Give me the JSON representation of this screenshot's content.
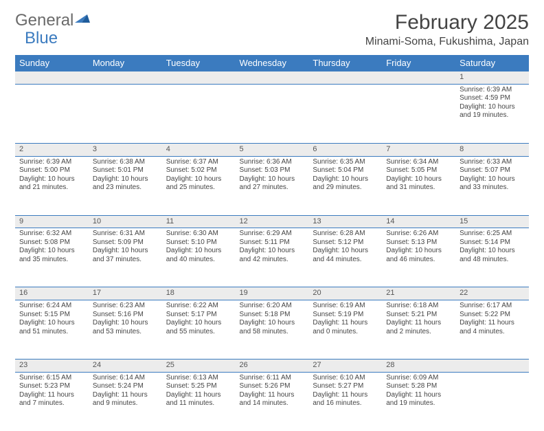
{
  "logo": {
    "part1": "General",
    "part2": "Blue"
  },
  "title": "February 2025",
  "location": "Minami-Soma, Fukushima, Japan",
  "colors": {
    "header_bg": "#3b7bbf",
    "header_text": "#ffffff",
    "daynum_bg": "#ececec",
    "border": "#3b7bbf",
    "text": "#444444",
    "logo_gray": "#6a6a6a",
    "logo_blue": "#3b7bbf"
  },
  "day_headers": [
    "Sunday",
    "Monday",
    "Tuesday",
    "Wednesday",
    "Thursday",
    "Friday",
    "Saturday"
  ],
  "weeks": [
    [
      null,
      null,
      null,
      null,
      null,
      null,
      {
        "n": "1",
        "sunrise": "Sunrise: 6:39 AM",
        "sunset": "Sunset: 4:59 PM",
        "daylight": "Daylight: 10 hours and 19 minutes."
      }
    ],
    [
      {
        "n": "2",
        "sunrise": "Sunrise: 6:39 AM",
        "sunset": "Sunset: 5:00 PM",
        "daylight": "Daylight: 10 hours and 21 minutes."
      },
      {
        "n": "3",
        "sunrise": "Sunrise: 6:38 AM",
        "sunset": "Sunset: 5:01 PM",
        "daylight": "Daylight: 10 hours and 23 minutes."
      },
      {
        "n": "4",
        "sunrise": "Sunrise: 6:37 AM",
        "sunset": "Sunset: 5:02 PM",
        "daylight": "Daylight: 10 hours and 25 minutes."
      },
      {
        "n": "5",
        "sunrise": "Sunrise: 6:36 AM",
        "sunset": "Sunset: 5:03 PM",
        "daylight": "Daylight: 10 hours and 27 minutes."
      },
      {
        "n": "6",
        "sunrise": "Sunrise: 6:35 AM",
        "sunset": "Sunset: 5:04 PM",
        "daylight": "Daylight: 10 hours and 29 minutes."
      },
      {
        "n": "7",
        "sunrise": "Sunrise: 6:34 AM",
        "sunset": "Sunset: 5:05 PM",
        "daylight": "Daylight: 10 hours and 31 minutes."
      },
      {
        "n": "8",
        "sunrise": "Sunrise: 6:33 AM",
        "sunset": "Sunset: 5:07 PM",
        "daylight": "Daylight: 10 hours and 33 minutes."
      }
    ],
    [
      {
        "n": "9",
        "sunrise": "Sunrise: 6:32 AM",
        "sunset": "Sunset: 5:08 PM",
        "daylight": "Daylight: 10 hours and 35 minutes."
      },
      {
        "n": "10",
        "sunrise": "Sunrise: 6:31 AM",
        "sunset": "Sunset: 5:09 PM",
        "daylight": "Daylight: 10 hours and 37 minutes."
      },
      {
        "n": "11",
        "sunrise": "Sunrise: 6:30 AM",
        "sunset": "Sunset: 5:10 PM",
        "daylight": "Daylight: 10 hours and 40 minutes."
      },
      {
        "n": "12",
        "sunrise": "Sunrise: 6:29 AM",
        "sunset": "Sunset: 5:11 PM",
        "daylight": "Daylight: 10 hours and 42 minutes."
      },
      {
        "n": "13",
        "sunrise": "Sunrise: 6:28 AM",
        "sunset": "Sunset: 5:12 PM",
        "daylight": "Daylight: 10 hours and 44 minutes."
      },
      {
        "n": "14",
        "sunrise": "Sunrise: 6:26 AM",
        "sunset": "Sunset: 5:13 PM",
        "daylight": "Daylight: 10 hours and 46 minutes."
      },
      {
        "n": "15",
        "sunrise": "Sunrise: 6:25 AM",
        "sunset": "Sunset: 5:14 PM",
        "daylight": "Daylight: 10 hours and 48 minutes."
      }
    ],
    [
      {
        "n": "16",
        "sunrise": "Sunrise: 6:24 AM",
        "sunset": "Sunset: 5:15 PM",
        "daylight": "Daylight: 10 hours and 51 minutes."
      },
      {
        "n": "17",
        "sunrise": "Sunrise: 6:23 AM",
        "sunset": "Sunset: 5:16 PM",
        "daylight": "Daylight: 10 hours and 53 minutes."
      },
      {
        "n": "18",
        "sunrise": "Sunrise: 6:22 AM",
        "sunset": "Sunset: 5:17 PM",
        "daylight": "Daylight: 10 hours and 55 minutes."
      },
      {
        "n": "19",
        "sunrise": "Sunrise: 6:20 AM",
        "sunset": "Sunset: 5:18 PM",
        "daylight": "Daylight: 10 hours and 58 minutes."
      },
      {
        "n": "20",
        "sunrise": "Sunrise: 6:19 AM",
        "sunset": "Sunset: 5:19 PM",
        "daylight": "Daylight: 11 hours and 0 minutes."
      },
      {
        "n": "21",
        "sunrise": "Sunrise: 6:18 AM",
        "sunset": "Sunset: 5:21 PM",
        "daylight": "Daylight: 11 hours and 2 minutes."
      },
      {
        "n": "22",
        "sunrise": "Sunrise: 6:17 AM",
        "sunset": "Sunset: 5:22 PM",
        "daylight": "Daylight: 11 hours and 4 minutes."
      }
    ],
    [
      {
        "n": "23",
        "sunrise": "Sunrise: 6:15 AM",
        "sunset": "Sunset: 5:23 PM",
        "daylight": "Daylight: 11 hours and 7 minutes."
      },
      {
        "n": "24",
        "sunrise": "Sunrise: 6:14 AM",
        "sunset": "Sunset: 5:24 PM",
        "daylight": "Daylight: 11 hours and 9 minutes."
      },
      {
        "n": "25",
        "sunrise": "Sunrise: 6:13 AM",
        "sunset": "Sunset: 5:25 PM",
        "daylight": "Daylight: 11 hours and 11 minutes."
      },
      {
        "n": "26",
        "sunrise": "Sunrise: 6:11 AM",
        "sunset": "Sunset: 5:26 PM",
        "daylight": "Daylight: 11 hours and 14 minutes."
      },
      {
        "n": "27",
        "sunrise": "Sunrise: 6:10 AM",
        "sunset": "Sunset: 5:27 PM",
        "daylight": "Daylight: 11 hours and 16 minutes."
      },
      {
        "n": "28",
        "sunrise": "Sunrise: 6:09 AM",
        "sunset": "Sunset: 5:28 PM",
        "daylight": "Daylight: 11 hours and 19 minutes."
      },
      null
    ]
  ]
}
